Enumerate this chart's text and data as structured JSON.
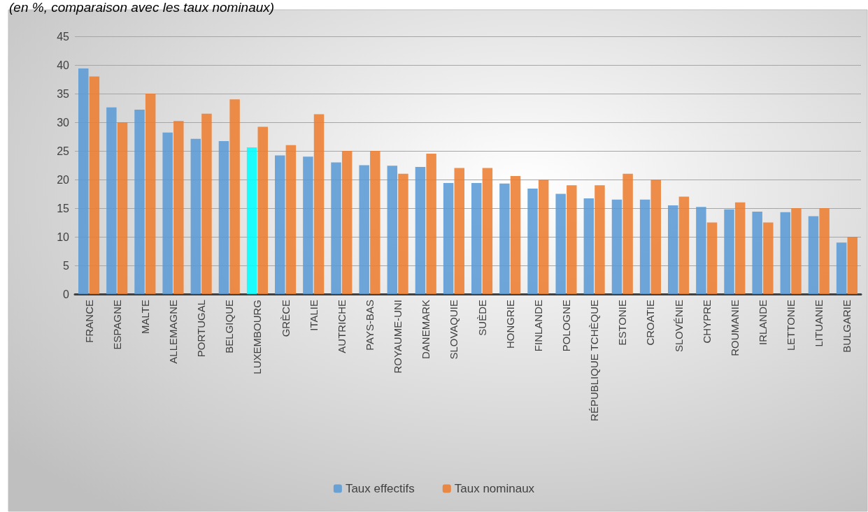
{
  "chart_data": {
    "type": "bar",
    "subtitle": "(en %, comparaison avec les taux nominaux)",
    "categories": [
      "FRANCE",
      "ESPAGNE",
      "MALTE",
      "ALLEMAGNE",
      "PORTUGAL",
      "BELGIQUE",
      "LUXEMBOURG",
      "GRÈCE",
      "ITALIE",
      "AUTRICHE",
      "PAYS-BAS",
      "ROYAUME-UNI",
      "DANEMARK",
      "SLOVAQUIE",
      "SUÈDE",
      "HONGRIE",
      "FINLANDE",
      "POLOGNE",
      "RÉPUBLIQUE TCHÈQUE",
      "ESTONIE",
      "CROATIE",
      "SLOVÉNIE",
      "CHYPRE",
      "ROUMANIE",
      "IRLANDE",
      "LETTONIE",
      "LITUANIE",
      "BULGARIE"
    ],
    "series": [
      {
        "name": "Taux effectifs",
        "color": "#5b9bd5",
        "colors": [
          "#5b9bd5",
          "#5b9bd5",
          "#5b9bd5",
          "#5b9bd5",
          "#5b9bd5",
          "#5b9bd5",
          "#00ffff",
          "#5b9bd5",
          "#5b9bd5",
          "#5b9bd5",
          "#5b9bd5",
          "#5b9bd5",
          "#5b9bd5",
          "#5b9bd5",
          "#5b9bd5",
          "#5b9bd5",
          "#5b9bd5",
          "#5b9bd5",
          "#5b9bd5",
          "#5b9bd5",
          "#5b9bd5",
          "#5b9bd5",
          "#5b9bd5",
          "#5b9bd5",
          "#5b9bd5",
          "#5b9bd5",
          "#5b9bd5",
          "#5b9bd5"
        ],
        "values": [
          39.4,
          32.6,
          32.2,
          28.2,
          27.1,
          26.7,
          25.6,
          24.2,
          24,
          23,
          22.5,
          22.4,
          22.2,
          19.4,
          19.4,
          19.3,
          18.4,
          17.5,
          16.7,
          16.5,
          16.5,
          15.5,
          15.2,
          14.8,
          14.4,
          14.3,
          13.6,
          9
        ]
      },
      {
        "name": "Taux nominaux",
        "color": "#ed7d31",
        "values": [
          38,
          30,
          35,
          30.2,
          31.5,
          34,
          29.2,
          26,
          31.4,
          25,
          25,
          21,
          24.5,
          22,
          22,
          20.6,
          20,
          19,
          19,
          21,
          20,
          17,
          12.5,
          16,
          12.5,
          15,
          15,
          10
        ]
      }
    ],
    "ylim": [
      0,
      45
    ],
    "yticks": [
      0,
      5,
      10,
      15,
      20,
      25,
      30,
      35,
      40,
      45
    ],
    "grid": "y",
    "legend": "bottom"
  }
}
